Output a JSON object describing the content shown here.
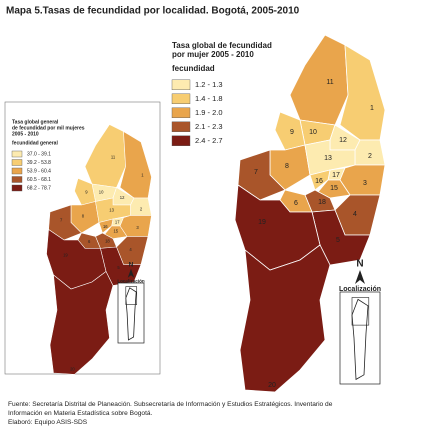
{
  "title": "Mapa 5.Tasas de fecundidad por localidad. Bogotá, 2005-2010",
  "large_map": {
    "legend_title": [
      "Tasa global de fecundidad",
      "por mujer 2005 - 2010"
    ],
    "legend_subtitle": "fecundidad",
    "legend": [
      {
        "label": "1.2 - 1.3",
        "color": "#fdebb0"
      },
      {
        "label": "1.4 - 1.8",
        "color": "#f7cd72"
      },
      {
        "label": "1.9 - 2.0",
        "color": "#e9a54c"
      },
      {
        "label": "2.1 - 2.3",
        "color": "#a9552a"
      },
      {
        "label": "2.4 - 2.7",
        "color": "#7b1c14"
      }
    ],
    "regions": [
      {
        "label": "11",
        "level": 2
      },
      {
        "label": "1",
        "level": 1
      },
      {
        "label": "10",
        "level": 1
      },
      {
        "label": "9",
        "level": 1
      },
      {
        "label": "12",
        "level": 0
      },
      {
        "label": "2",
        "level": 0
      },
      {
        "label": "8",
        "level": 2
      },
      {
        "label": "13",
        "level": 0
      },
      {
        "label": "17",
        "level": 0
      },
      {
        "label": "16",
        "level": 1
      },
      {
        "label": "3",
        "level": 2
      },
      {
        "label": "15",
        "level": 2
      },
      {
        "label": "7",
        "level": 3
      },
      {
        "label": "18",
        "level": 3
      },
      {
        "label": "6",
        "level": 2
      },
      {
        "label": "4",
        "level": 3
      },
      {
        "label": "5",
        "level": 4
      },
      {
        "label": "19",
        "level": 4
      },
      {
        "label": "20",
        "level": 4
      }
    ],
    "locator": "Localización",
    "north": "N"
  },
  "small_map": {
    "legend_title": [
      "Tasa global general",
      "de fecundidad por mil mujeres",
      "2005 - 2010"
    ],
    "legend_subtitle": "fecundidad general",
    "legend": [
      {
        "label": "37.0 - 39.1",
        "color": "#fdebb0"
      },
      {
        "label": "39.2 - 53.8",
        "color": "#f7cd72"
      },
      {
        "label": "53.9 - 60.4",
        "color": "#e9a54c"
      },
      {
        "label": "60.5 - 68.1",
        "color": "#a9552a"
      },
      {
        "label": "68.2 - 78.7",
        "color": "#7b1c14"
      }
    ],
    "levels": [
      1,
      2,
      0,
      1,
      0,
      0,
      2,
      1,
      0,
      2,
      2,
      2,
      3,
      3,
      3,
      3,
      4,
      4,
      4
    ],
    "locator": "Localización",
    "north": "N"
  },
  "footer": [
    "Fuente: Secretaría Distrital de Planeación. Subsecretaría de Información y Estudios Estratégicos. Inventario de",
    "Información en Materia Estadística sobre Bogotá.",
    "Elaboró: Equipo ASIS-SDS"
  ]
}
